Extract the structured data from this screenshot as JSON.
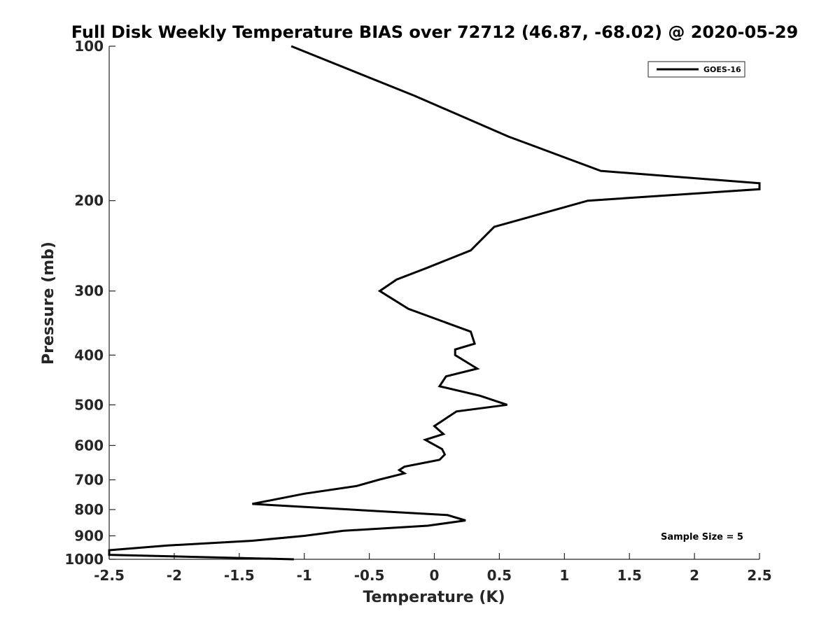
{
  "chart_data": {
    "type": "line",
    "title": "Full Disk Weekly Temperature BIAS over 72712 (46.87, -68.02) @ 2020-05-29",
    "xlabel": "Temperature (K)",
    "ylabel": "Pressure (mb)",
    "xlim": [
      -2.5,
      2.5
    ],
    "ylim": [
      100,
      1000
    ],
    "yscale": "log",
    "y_reversed": true,
    "xticks": [
      -2.5,
      -2,
      -1.5,
      -1,
      -0.5,
      0,
      0.5,
      1,
      1.5,
      2,
      2.5
    ],
    "xtick_labels": [
      "-2.5",
      "-2",
      "-1.5",
      "-1",
      "-0.5",
      "0",
      "0.5",
      "1",
      "1.5",
      "2",
      "2.5"
    ],
    "yticks": [
      100,
      200,
      300,
      400,
      500,
      600,
      700,
      800,
      900,
      1000
    ],
    "ytick_labels": [
      "100",
      "200",
      "300",
      "400",
      "500",
      "600",
      "700",
      "800",
      "900",
      "1000"
    ],
    "grid": false,
    "legend_position": "top-right",
    "annotation": "Sample Size = 5",
    "series": [
      {
        "name": "GOES-16",
        "color": "#000000",
        "points": [
          {
            "x": -1.1,
            "y": 100
          },
          {
            "x": -0.15,
            "y": 125
          },
          {
            "x": 0.57,
            "y": 150
          },
          {
            "x": 1.28,
            "y": 175
          },
          {
            "x": 2.5,
            "y": 185
          },
          {
            "x": 2.5,
            "y": 190
          },
          {
            "x": 1.18,
            "y": 200
          },
          {
            "x": 0.46,
            "y": 225
          },
          {
            "x": 0.28,
            "y": 250
          },
          {
            "x": -0.05,
            "y": 270
          },
          {
            "x": -0.29,
            "y": 285
          },
          {
            "x": -0.42,
            "y": 300
          },
          {
            "x": -0.2,
            "y": 325
          },
          {
            "x": 0.28,
            "y": 360
          },
          {
            "x": 0.31,
            "y": 380
          },
          {
            "x": 0.16,
            "y": 390
          },
          {
            "x": 0.16,
            "y": 400
          },
          {
            "x": 0.33,
            "y": 425
          },
          {
            "x": 0.09,
            "y": 440
          },
          {
            "x": 0.04,
            "y": 460
          },
          {
            "x": 0.35,
            "y": 480
          },
          {
            "x": 0.56,
            "y": 500
          },
          {
            "x": 0.17,
            "y": 515
          },
          {
            "x": 0.0,
            "y": 550
          },
          {
            "x": 0.07,
            "y": 570
          },
          {
            "x": -0.07,
            "y": 585
          },
          {
            "x": 0.06,
            "y": 610
          },
          {
            "x": 0.08,
            "y": 625
          },
          {
            "x": 0.04,
            "y": 640
          },
          {
            "x": -0.23,
            "y": 660
          },
          {
            "x": -0.27,
            "y": 670
          },
          {
            "x": -0.23,
            "y": 680
          },
          {
            "x": -0.43,
            "y": 700
          },
          {
            "x": -0.6,
            "y": 720
          },
          {
            "x": -1.0,
            "y": 745
          },
          {
            "x": -1.4,
            "y": 780
          },
          {
            "x": 0.1,
            "y": 820
          },
          {
            "x": 0.24,
            "y": 840
          },
          {
            "x": -0.05,
            "y": 860
          },
          {
            "x": -0.7,
            "y": 880
          },
          {
            "x": -1.0,
            "y": 900
          },
          {
            "x": -1.4,
            "y": 920
          },
          {
            "x": -2.05,
            "y": 940
          },
          {
            "x": -2.5,
            "y": 960
          },
          {
            "x": -2.5,
            "y": 980
          },
          {
            "x": -1.08,
            "y": 1000
          }
        ]
      }
    ]
  }
}
